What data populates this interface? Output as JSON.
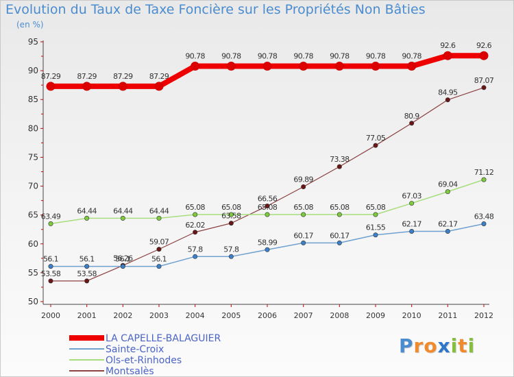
{
  "header": {
    "title": "Evolution du Taux de Taxe Foncière sur les Propriétés Non Bâties",
    "unit": "(en %)"
  },
  "logo": {
    "letters": [
      {
        "char": "P",
        "color": "#4a8ccf"
      },
      {
        "char": "r",
        "color": "#f08a2c"
      },
      {
        "char": "o",
        "color": "#f08a2c"
      },
      {
        "char": "x",
        "color": "#2e77c8"
      },
      {
        "char": "i",
        "color": "#86bf3b"
      },
      {
        "char": "t",
        "color": "#f08a2c"
      },
      {
        "char": "i",
        "color": "#86bf3b"
      }
    ]
  },
  "chart_data": {
    "type": "line",
    "title": "Evolution du Taux de Taxe Foncière sur les Propriétés Non Bâties",
    "ylabel": "(en %)",
    "xlabel": "",
    "ylim": [
      50,
      95
    ],
    "yticks": [
      50,
      55,
      60,
      65,
      70,
      75,
      80,
      85,
      90,
      95
    ],
    "grid": false,
    "legend_position": "bottom-left",
    "x": [
      "2000",
      "2001",
      "2002",
      "2003",
      "2004",
      "2005",
      "2006",
      "2007",
      "2008",
      "2009",
      "2010",
      "2011",
      "2012"
    ],
    "series": [
      {
        "name": "LA CAPELLE-BALAGUIER",
        "color": "#ee0000",
        "dot_color": "#dd0000",
        "width": 8,
        "values": [
          87.29,
          87.29,
          87.29,
          87.29,
          90.78,
          90.78,
          90.78,
          90.78,
          90.78,
          90.78,
          90.78,
          92.6,
          92.6
        ],
        "labels": [
          "87.29",
          "87.29",
          "87.29",
          "87.29",
          "90.78",
          "90.78",
          "90.78",
          "90.78",
          "90.78",
          "90.78",
          "90.78",
          "92.6",
          "92.6"
        ]
      },
      {
        "name": "Sainte-Croix",
        "color": "#6fa1cf",
        "dot_color": "#3c80c8",
        "width": 1.5,
        "values": [
          56.1,
          56.1,
          56.1,
          56.1,
          57.8,
          57.8,
          58.99,
          60.17,
          60.17,
          61.55,
          62.17,
          62.17,
          63.48
        ],
        "labels": [
          "56.1",
          "56.1",
          "56.1",
          "56.1",
          "57.8",
          "57.8",
          "58.99",
          "60.17",
          "60.17",
          "61.55",
          "62.17",
          "62.17",
          "63.48"
        ]
      },
      {
        "name": "Ols-et-Rinhodes",
        "color": "#a7dd7d",
        "dot_color": "#7ecb3e",
        "width": 1.5,
        "values": [
          63.49,
          64.44,
          64.44,
          64.44,
          65.08,
          65.08,
          65.08,
          65.08,
          65.08,
          65.08,
          67.03,
          69.04,
          71.12
        ],
        "labels": [
          "63.49",
          "64.44",
          "64.44",
          "64.44",
          "65.08",
          "65.08",
          "65.08",
          "65.08",
          "65.08",
          "65.08",
          "67.03",
          "69.04",
          "71.12"
        ]
      },
      {
        "name": "Montsalès",
        "color": "#8c4040",
        "dot_color": "#6b1616",
        "width": 1.2,
        "values": [
          53.58,
          53.58,
          56.26,
          59.07,
          62.02,
          63.58,
          66.56,
          69.89,
          73.38,
          77.05,
          80.9,
          84.95,
          87.07
        ],
        "labels": [
          "53.58",
          "53.58",
          "56.26",
          "59.07",
          "62.02",
          "63.58",
          "66.56",
          "69.89",
          "73.38",
          "77.05",
          "80.9",
          "84.95",
          "87.07"
        ]
      }
    ]
  }
}
